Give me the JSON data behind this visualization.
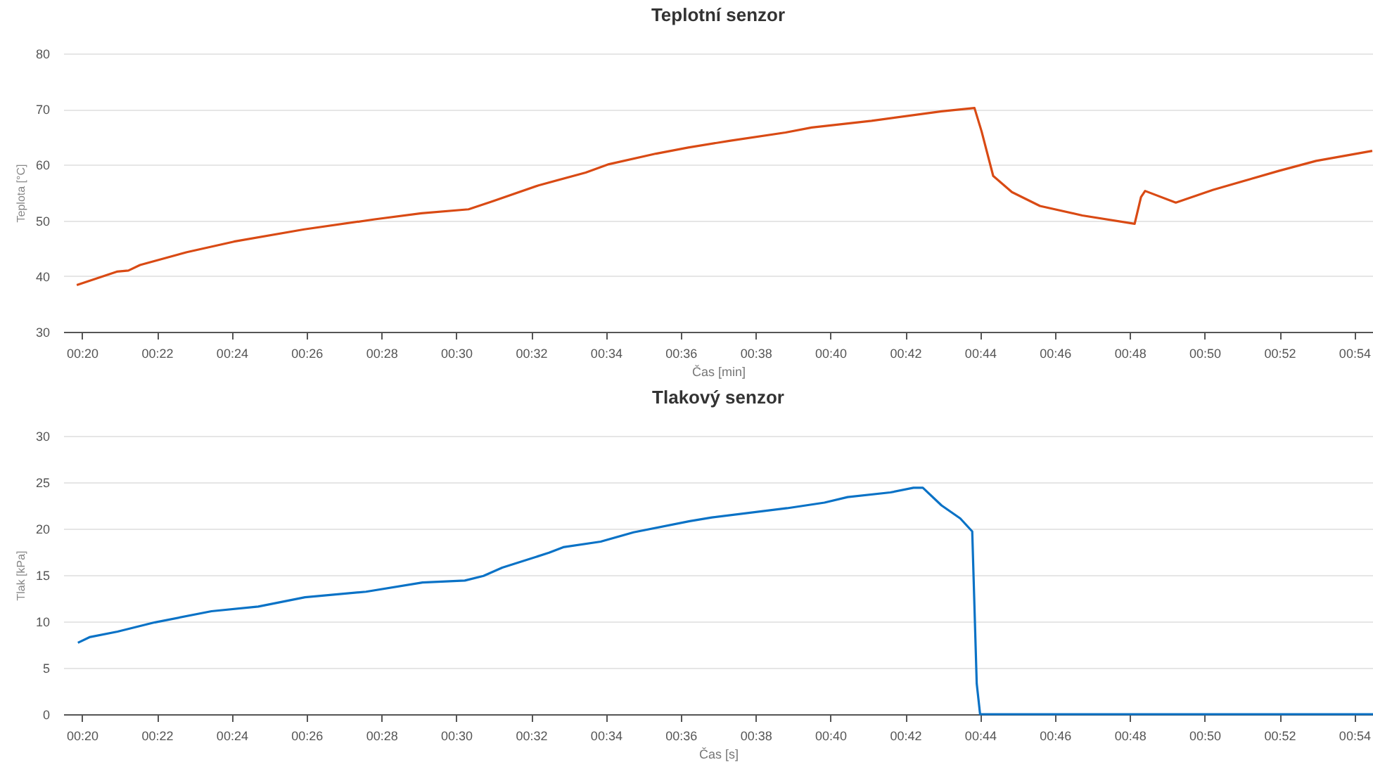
{
  "chart_data": [
    {
      "type": "line",
      "title": "Teplotní senzor",
      "xlabel": "Čas [min]",
      "ylabel": "Teplota [°C]",
      "grid": "y",
      "xlim": [
        19.5,
        54.5
      ],
      "ylim": [
        30,
        80
      ],
      "yticks": [
        30,
        40,
        50,
        60,
        70,
        80
      ],
      "xticks": [
        {
          "value": 20,
          "label": "00:20"
        },
        {
          "value": 22,
          "label": "00:22"
        },
        {
          "value": 24,
          "label": "00:24"
        },
        {
          "value": 26,
          "label": "00:26"
        },
        {
          "value": 28,
          "label": "00:28"
        },
        {
          "value": 30,
          "label": "00:30"
        },
        {
          "value": 32,
          "label": "00:32"
        },
        {
          "value": 34,
          "label": "00:34"
        },
        {
          "value": 36,
          "label": "00:36"
        },
        {
          "value": 38,
          "label": "00:38"
        },
        {
          "value": 40,
          "label": "00:40"
        },
        {
          "value": 42,
          "label": "00:42"
        },
        {
          "value": 44,
          "label": "00:44"
        },
        {
          "value": 46,
          "label": "00:46"
        },
        {
          "value": 48,
          "label": "00:48"
        },
        {
          "value": 50,
          "label": "00:50"
        },
        {
          "value": 52,
          "label": "00:52"
        },
        {
          "value": 54,
          "label": "00:54"
        }
      ],
      "series": [
        {
          "color": "#d94a14",
          "x": [
            19.86,
            20.93,
            21.24,
            21.55,
            22.8,
            24.06,
            25.94,
            27.82,
            29.07,
            30.33,
            30.95,
            32.2,
            33.46,
            34.08,
            35.34,
            36.2,
            37.3,
            38.8,
            39.5,
            41.1,
            42.97,
            43.85,
            44.04,
            44.35,
            44.85,
            45.6,
            46.73,
            48.13,
            48.3,
            48.41,
            49.23,
            50.23,
            51.98,
            52.98,
            54.48
          ],
          "values": [
            38.4,
            40.8,
            41.0,
            42.0,
            44.3,
            46.2,
            48.4,
            50.2,
            51.3,
            52.0,
            53.4,
            56.3,
            58.6,
            60.1,
            62.0,
            63.1,
            64.3,
            65.8,
            66.7,
            67.9,
            69.6,
            70.2,
            66.0,
            58.0,
            55.1,
            52.6,
            50.9,
            49.4,
            54.2,
            55.3,
            53.2,
            55.5,
            58.9,
            60.7,
            62.5
          ]
        }
      ]
    },
    {
      "type": "line",
      "title": "Tlakový senzor",
      "xlabel": "Čas [s]",
      "ylabel": "Tlak [kPa]",
      "grid": "y",
      "xlim": [
        19.5,
        54.5
      ],
      "ylim": [
        0,
        30
      ],
      "yticks": [
        0,
        5,
        10,
        15,
        20,
        25,
        30
      ],
      "xticks": [
        {
          "value": 20,
          "label": "00:20"
        },
        {
          "value": 22,
          "label": "00:22"
        },
        {
          "value": 24,
          "label": "00:24"
        },
        {
          "value": 26,
          "label": "00:26"
        },
        {
          "value": 28,
          "label": "00:28"
        },
        {
          "value": 30,
          "label": "00:30"
        },
        {
          "value": 32,
          "label": "00:32"
        },
        {
          "value": 34,
          "label": "00:34"
        },
        {
          "value": 36,
          "label": "00:36"
        },
        {
          "value": 38,
          "label": "00:38"
        },
        {
          "value": 40,
          "label": "00:40"
        },
        {
          "value": 42,
          "label": "00:42"
        },
        {
          "value": 44,
          "label": "00:44"
        },
        {
          "value": 46,
          "label": "00:46"
        },
        {
          "value": 48,
          "label": "00:48"
        },
        {
          "value": 50,
          "label": "00:50"
        },
        {
          "value": 52,
          "label": "00:52"
        },
        {
          "value": 54,
          "label": "00:54"
        }
      ],
      "series": [
        {
          "color": "#0a72c6",
          "x": [
            19.89,
            20.2,
            20.95,
            21.95,
            23.46,
            24.71,
            25.96,
            27.59,
            29.1,
            30.23,
            30.73,
            31.23,
            32.48,
            32.86,
            33.86,
            34.74,
            36.24,
            36.83,
            38.84,
            39.84,
            40.46,
            41.6,
            42.22,
            42.47,
            42.97,
            43.47,
            43.79,
            43.91,
            44.0,
            54.5
          ],
          "values": [
            7.7,
            8.3,
            8.9,
            9.9,
            11.1,
            11.6,
            12.6,
            13.2,
            14.2,
            14.4,
            14.9,
            15.8,
            17.4,
            18.0,
            18.6,
            19.6,
            20.8,
            21.2,
            22.2,
            22.8,
            23.4,
            23.9,
            24.4,
            24.4,
            22.5,
            21.1,
            19.7,
            3.3,
            0,
            0
          ]
        }
      ]
    }
  ]
}
